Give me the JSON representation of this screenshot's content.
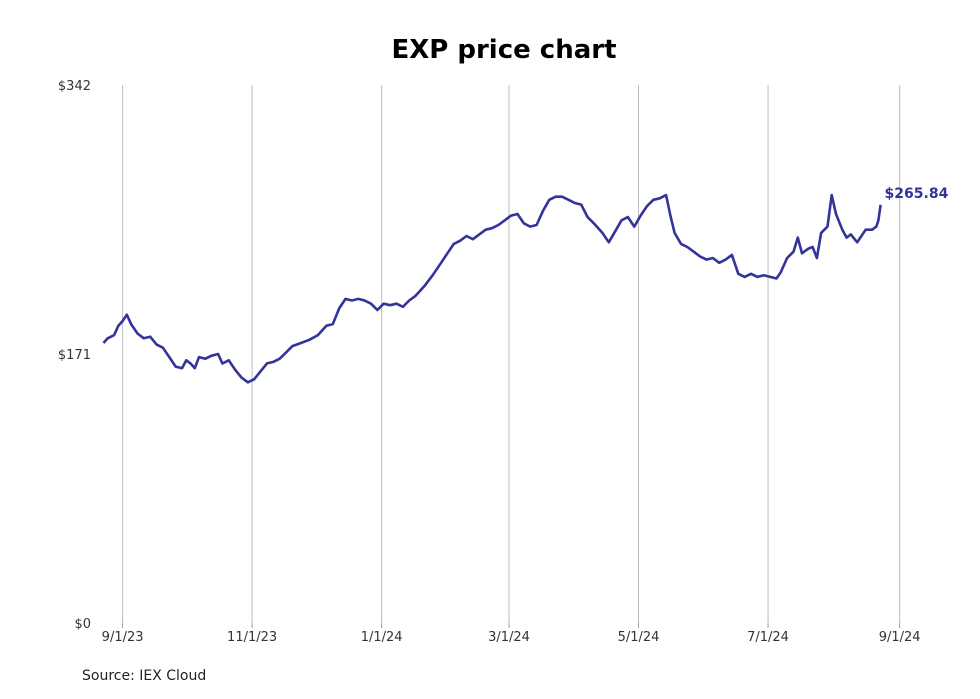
{
  "chart_data": {
    "type": "line",
    "title": "EXP price chart",
    "xlabel": "",
    "ylabel": "",
    "x_tick_labels": [
      "9/1/23",
      "11/1/23",
      "1/1/24",
      "3/1/24",
      "5/1/24",
      "7/1/24",
      "9/1/24"
    ],
    "x_ticks": [
      "2023-09-01",
      "2023-11-01",
      "2024-01-01",
      "2024-03-01",
      "2024-05-01",
      "2024-07-01",
      "2024-09-01"
    ],
    "xlim": [
      "2023-08-19",
      "2024-09-20"
    ],
    "y_tick_labels": [
      "$0",
      "$171",
      "$342"
    ],
    "y_ticks": [
      0,
      171,
      342
    ],
    "ylim": [
      0,
      342
    ],
    "grid": "vertical",
    "line_color": "#33339a",
    "last_value_label": "$265.84",
    "series": [
      {
        "values": [
          [
            "2023-08-23",
            178
          ],
          [
            "2023-08-25",
            181
          ],
          [
            "2023-08-28",
            183
          ],
          [
            "2023-08-30",
            189
          ],
          [
            "2023-09-01",
            192
          ],
          [
            "2023-09-03",
            196
          ],
          [
            "2023-09-05",
            190
          ],
          [
            "2023-09-08",
            184
          ],
          [
            "2023-09-11",
            181
          ],
          [
            "2023-09-14",
            182
          ],
          [
            "2023-09-17",
            177
          ],
          [
            "2023-09-20",
            175
          ],
          [
            "2023-09-23",
            169
          ],
          [
            "2023-09-26",
            163
          ],
          [
            "2023-09-29",
            162
          ],
          [
            "2023-10-01",
            167
          ],
          [
            "2023-10-03",
            165
          ],
          [
            "2023-10-05",
            162
          ],
          [
            "2023-10-07",
            169
          ],
          [
            "2023-10-10",
            168
          ],
          [
            "2023-10-13",
            170
          ],
          [
            "2023-10-16",
            171
          ],
          [
            "2023-10-18",
            165
          ],
          [
            "2023-10-21",
            167
          ],
          [
            "2023-10-24",
            161
          ],
          [
            "2023-10-27",
            156
          ],
          [
            "2023-10-30",
            153
          ],
          [
            "2023-11-02",
            155
          ],
          [
            "2023-11-05",
            160
          ],
          [
            "2023-11-08",
            165
          ],
          [
            "2023-11-11",
            166
          ],
          [
            "2023-11-14",
            168
          ],
          [
            "2023-11-17",
            172
          ],
          [
            "2023-11-20",
            176
          ],
          [
            "2023-11-24",
            178
          ],
          [
            "2023-11-28",
            180
          ],
          [
            "2023-12-02",
            183
          ],
          [
            "2023-12-06",
            189
          ],
          [
            "2023-12-09",
            190
          ],
          [
            "2023-12-12",
            200
          ],
          [
            "2023-12-15",
            206
          ],
          [
            "2023-12-18",
            205
          ],
          [
            "2023-12-21",
            206
          ],
          [
            "2023-12-24",
            205
          ],
          [
            "2023-12-27",
            203
          ],
          [
            "2023-12-30",
            199
          ],
          [
            "2024-01-02",
            203
          ],
          [
            "2024-01-05",
            202
          ],
          [
            "2024-01-08",
            203
          ],
          [
            "2024-01-11",
            201
          ],
          [
            "2024-01-14",
            205
          ],
          [
            "2024-01-17",
            208
          ],
          [
            "2024-01-21",
            214
          ],
          [
            "2024-01-25",
            221
          ],
          [
            "2024-01-29",
            229
          ],
          [
            "2024-02-01",
            235
          ],
          [
            "2024-02-04",
            241
          ],
          [
            "2024-02-07",
            243
          ],
          [
            "2024-02-10",
            246
          ],
          [
            "2024-02-13",
            244
          ],
          [
            "2024-02-16",
            247
          ],
          [
            "2024-02-19",
            250
          ],
          [
            "2024-02-22",
            251
          ],
          [
            "2024-02-25",
            253
          ],
          [
            "2024-02-28",
            256
          ],
          [
            "2024-03-02",
            259
          ],
          [
            "2024-03-05",
            260
          ],
          [
            "2024-03-08",
            254
          ],
          [
            "2024-03-11",
            252
          ],
          [
            "2024-03-14",
            253
          ],
          [
            "2024-03-17",
            262
          ],
          [
            "2024-03-20",
            269
          ],
          [
            "2024-03-23",
            271
          ],
          [
            "2024-03-26",
            271
          ],
          [
            "2024-03-29",
            269
          ],
          [
            "2024-04-01",
            267
          ],
          [
            "2024-04-04",
            266
          ],
          [
            "2024-04-07",
            258
          ],
          [
            "2024-04-10",
            254
          ],
          [
            "2024-04-14",
            248
          ],
          [
            "2024-04-17",
            242
          ],
          [
            "2024-04-20",
            249
          ],
          [
            "2024-04-23",
            256
          ],
          [
            "2024-04-26",
            258
          ],
          [
            "2024-04-29",
            252
          ],
          [
            "2024-05-02",
            259
          ],
          [
            "2024-05-05",
            265
          ],
          [
            "2024-05-08",
            269
          ],
          [
            "2024-05-11",
            270
          ],
          [
            "2024-05-14",
            272
          ],
          [
            "2024-05-16",
            259
          ],
          [
            "2024-05-18",
            248
          ],
          [
            "2024-05-21",
            241
          ],
          [
            "2024-05-24",
            239
          ],
          [
            "2024-05-27",
            236
          ],
          [
            "2024-05-30",
            233
          ],
          [
            "2024-06-02",
            231
          ],
          [
            "2024-06-05",
            232
          ],
          [
            "2024-06-08",
            229
          ],
          [
            "2024-06-11",
            231
          ],
          [
            "2024-06-14",
            234
          ],
          [
            "2024-06-17",
            222
          ],
          [
            "2024-06-20",
            220
          ],
          [
            "2024-06-23",
            222
          ],
          [
            "2024-06-26",
            220
          ],
          [
            "2024-06-29",
            221
          ],
          [
            "2024-07-02",
            220
          ],
          [
            "2024-07-05",
            219
          ],
          [
            "2024-07-07",
            223
          ],
          [
            "2024-07-10",
            232
          ],
          [
            "2024-07-13",
            236
          ],
          [
            "2024-07-15",
            245
          ],
          [
            "2024-07-17",
            235
          ],
          [
            "2024-07-20",
            238
          ],
          [
            "2024-07-22",
            239
          ],
          [
            "2024-07-24",
            232
          ],
          [
            "2024-07-26",
            248
          ],
          [
            "2024-07-29",
            252
          ],
          [
            "2024-07-31",
            272
          ],
          [
            "2024-08-02",
            260
          ],
          [
            "2024-08-05",
            250
          ],
          [
            "2024-08-07",
            245
          ],
          [
            "2024-08-09",
            247
          ],
          [
            "2024-08-12",
            242
          ],
          [
            "2024-08-14",
            246
          ],
          [
            "2024-08-16",
            250
          ],
          [
            "2024-08-19",
            250
          ],
          [
            "2024-08-21",
            252
          ],
          [
            "2024-08-22",
            256
          ],
          [
            "2024-08-23",
            265.84
          ]
        ]
      }
    ]
  },
  "footer": {
    "source": "Source: IEX Cloud"
  }
}
